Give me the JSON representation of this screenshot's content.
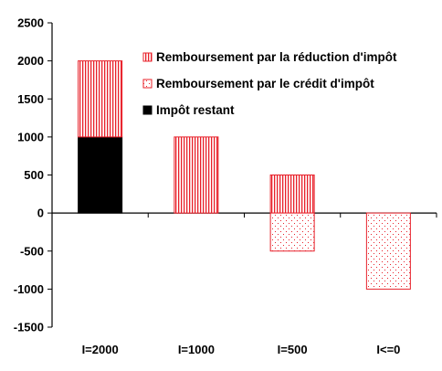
{
  "chart_data": {
    "type": "bar",
    "stacked": true,
    "categories": [
      "I=2000",
      "I=1000",
      "I=500",
      "I<=0"
    ],
    "series": [
      {
        "name": "Remboursement par la réduction d'impôt",
        "values": [
          1000,
          1000,
          500,
          0
        ],
        "pattern": "vertical-stripes",
        "color": "#e8202a"
      },
      {
        "name": "Remboursement par le crédit d'impôt",
        "values": [
          0,
          0,
          -500,
          -1000
        ],
        "pattern": "dots",
        "color": "#e8202a"
      },
      {
        "name": "Impôt restant",
        "values": [
          1000,
          0,
          0,
          0
        ],
        "pattern": "solid",
        "color": "#000000"
      }
    ],
    "ylim": [
      -1500,
      2500
    ],
    "yticks": [
      "2500",
      "2000",
      "1500",
      "1000",
      "500",
      "0",
      "-500",
      "-1000",
      "-1500"
    ],
    "grid": false,
    "legend_position": "top-right",
    "title": "",
    "xlabel": "",
    "ylabel": ""
  }
}
